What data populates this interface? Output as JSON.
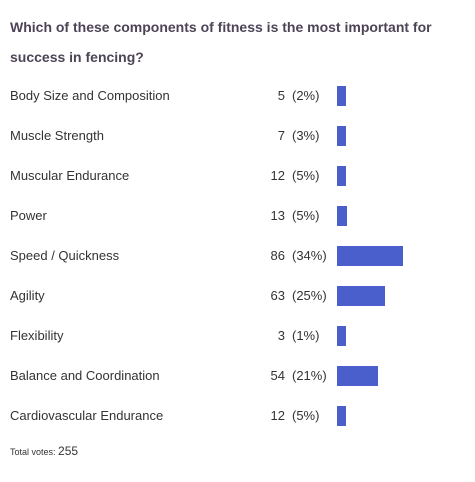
{
  "poll": {
    "question": "Which of these components of fitness is the most important for success in fencing?",
    "total_label": "Total votes:",
    "total_votes": "255",
    "bar_color": "#4a5fcb"
  },
  "chart_data": {
    "type": "bar",
    "orientation": "horizontal",
    "categories": [
      "Body Size and Composition",
      "Muscle Strength",
      "Muscular Endurance",
      "Power",
      "Speed / Quickness",
      "Agility",
      "Flexibility",
      "Balance and Coordination",
      "Cardiovascular Endurance"
    ],
    "values": [
      5,
      7,
      12,
      13,
      86,
      63,
      3,
      54,
      12
    ],
    "percent_labels": [
      "(2%)",
      "(3%)",
      "(5%)",
      "(5%)",
      "(34%)",
      "(25%)",
      "(1%)",
      "(21%)",
      "(5%)"
    ],
    "title": "Which of these components of fitness is the most important for success in fencing?",
    "legend": "none",
    "grid": false
  }
}
